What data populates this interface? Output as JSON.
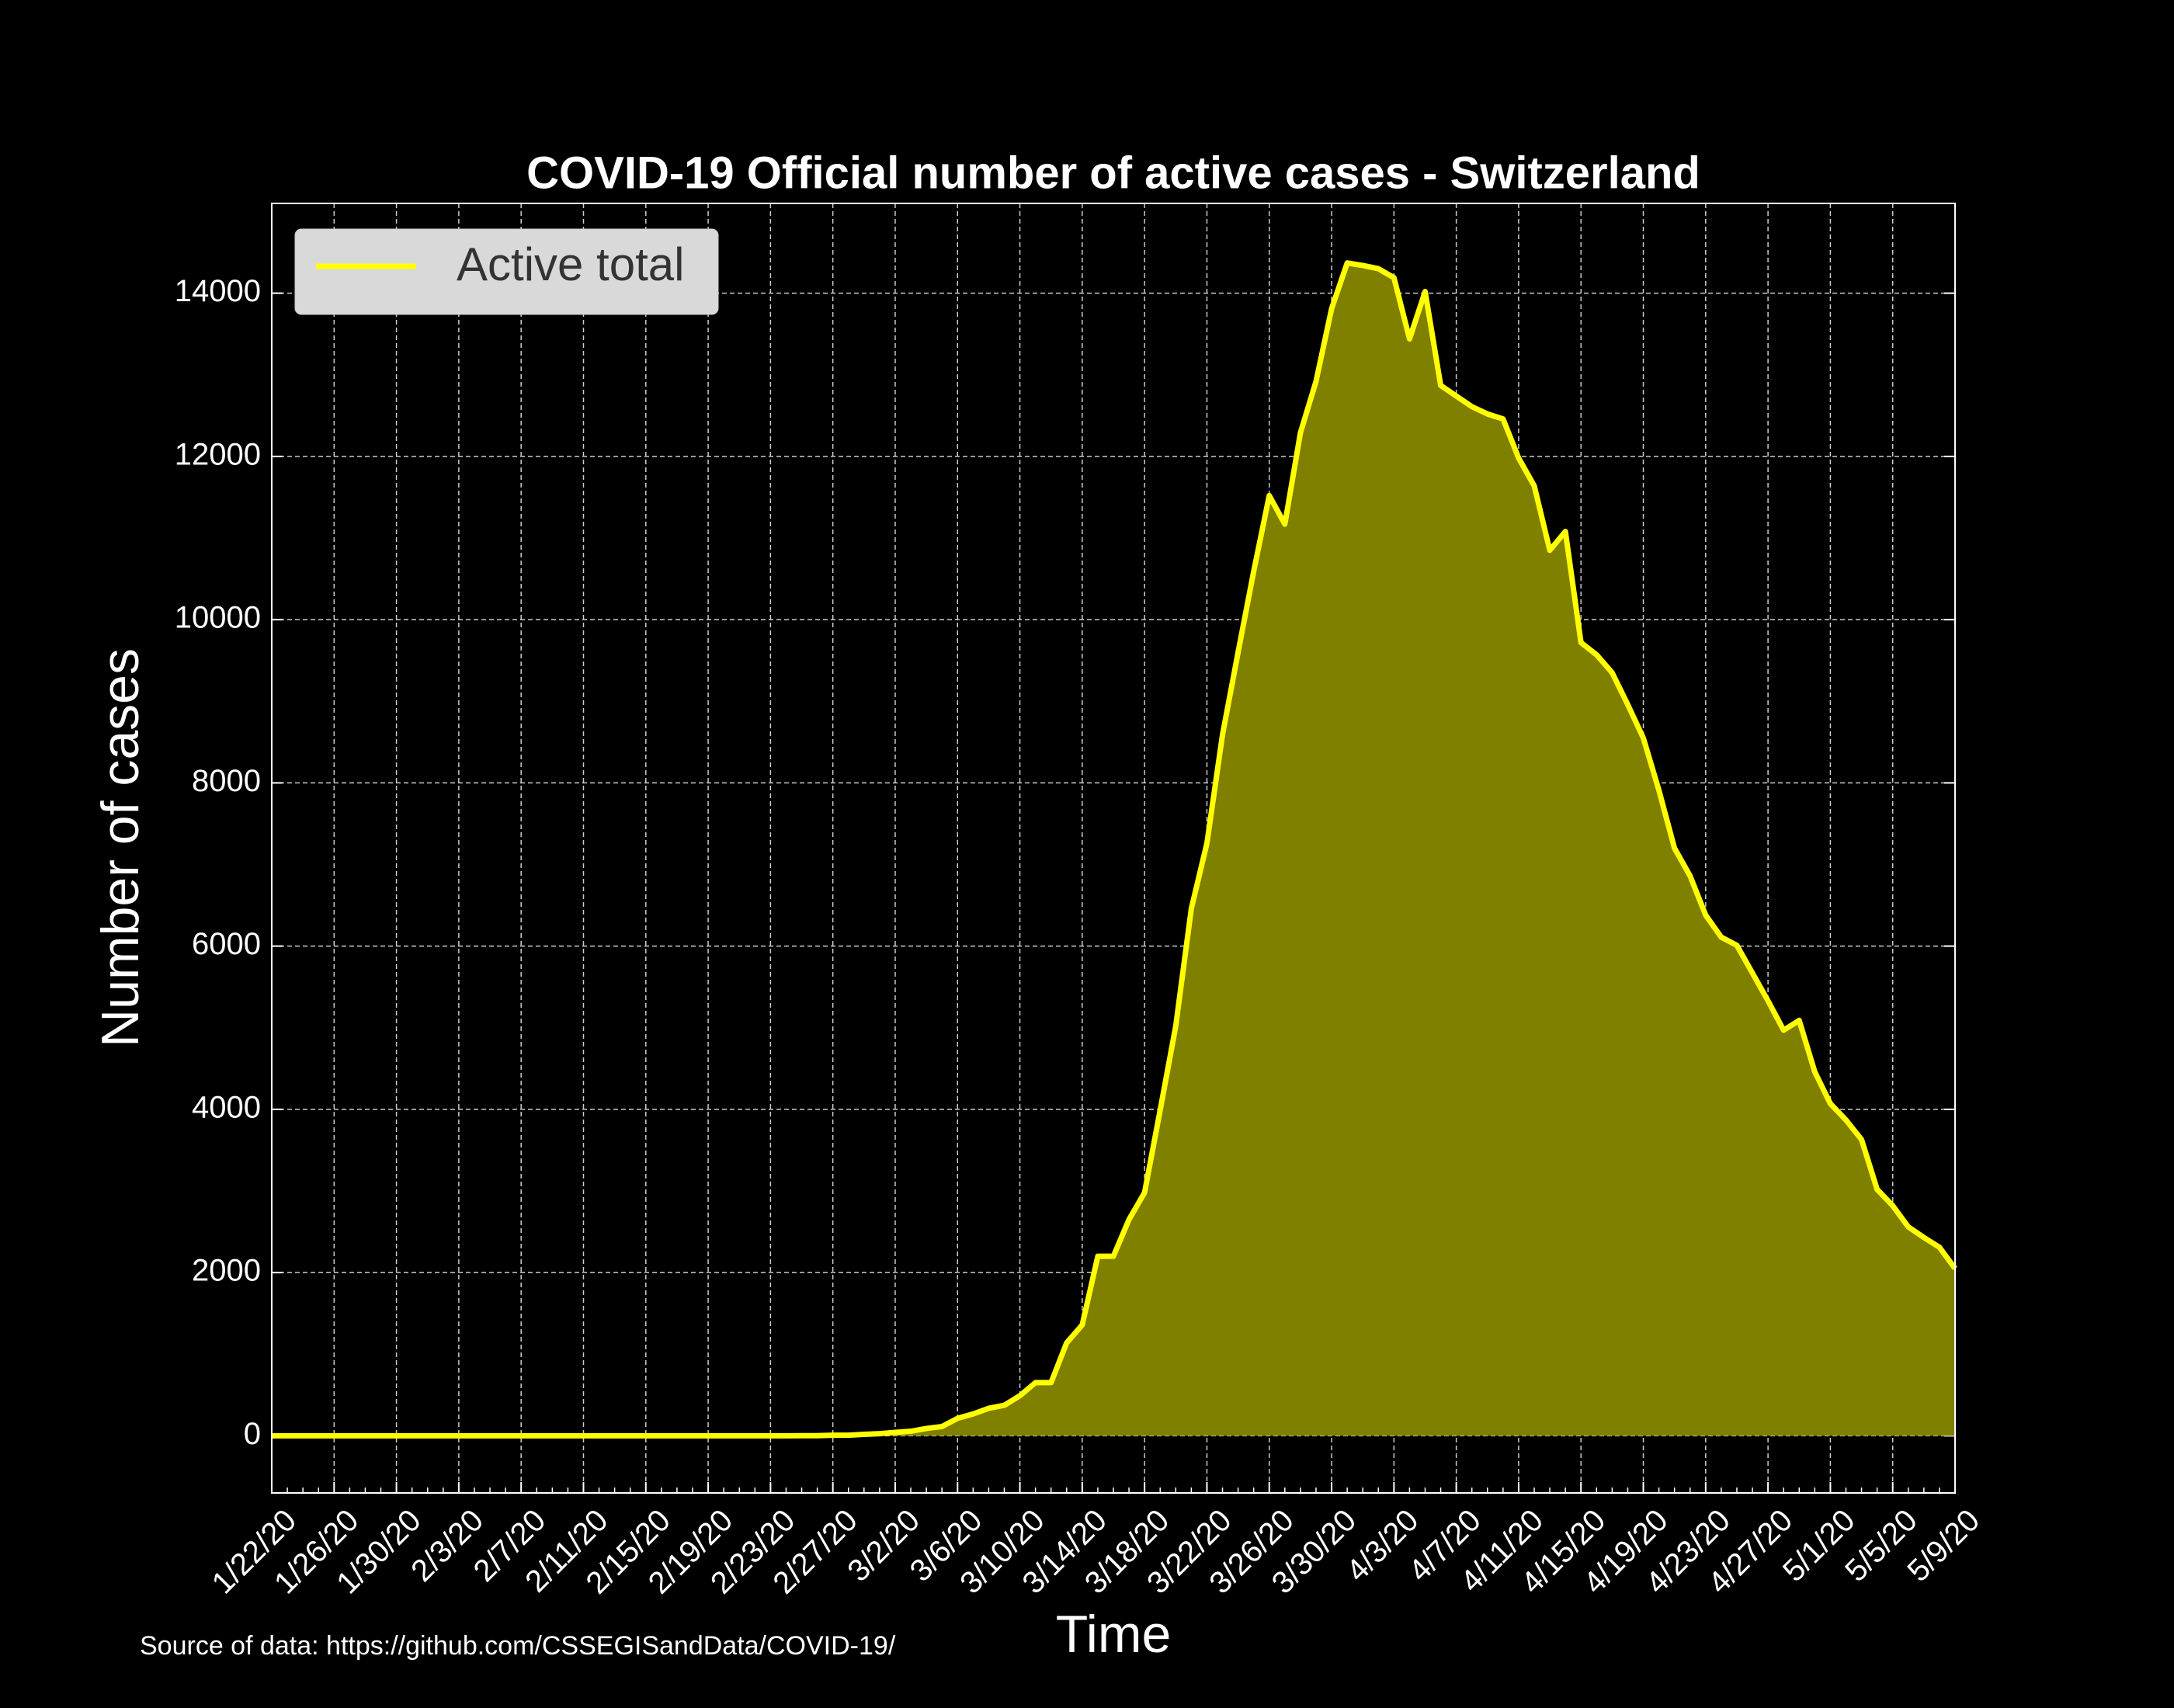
{
  "chart_data": {
    "type": "line",
    "title": "COVID-19 Official number of active cases - Switzerland",
    "x_label": "Time",
    "y_label": "Number of cases",
    "source": "Source of data: https://github.com/CSSEGISandData/COVID-19/",
    "categories": [
      "1/22/20",
      null,
      null,
      null,
      "1/26/20",
      null,
      null,
      null,
      "1/30/20",
      null,
      null,
      null,
      "2/3/20",
      null,
      null,
      null,
      "2/7/20",
      null,
      null,
      null,
      "2/11/20",
      null,
      null,
      null,
      "2/15/20",
      null,
      null,
      null,
      "2/19/20",
      null,
      null,
      null,
      "2/23/20",
      null,
      null,
      null,
      "2/27/20",
      null,
      null,
      null,
      "3/2/20",
      null,
      null,
      null,
      "3/6/20",
      null,
      null,
      null,
      "3/10/20",
      null,
      null,
      null,
      "3/14/20",
      null,
      null,
      null,
      "3/18/20",
      null,
      null,
      null,
      "3/22/20",
      null,
      null,
      null,
      "3/26/20",
      null,
      null,
      null,
      "3/30/20",
      null,
      null,
      null,
      "4/3/20",
      null,
      null,
      null,
      "4/7/20",
      null,
      null,
      null,
      "4/11/20",
      null,
      null,
      null,
      "4/15/20",
      null,
      null,
      null,
      "4/19/20",
      null,
      null,
      null,
      "4/23/20",
      null,
      null,
      null,
      "4/27/20",
      null,
      null,
      null,
      "5/1/20",
      null,
      null,
      null,
      "5/5/20",
      null,
      null,
      null,
      "5/9/20"
    ],
    "series": [
      {
        "name": "Active total",
        "color": "#ffff00",
        "fill_color": "#808000",
        "values": [
          0,
          0,
          0,
          0,
          0,
          0,
          0,
          0,
          0,
          0,
          0,
          0,
          0,
          0,
          0,
          0,
          0,
          0,
          0,
          0,
          0,
          0,
          0,
          0,
          0,
          0,
          0,
          0,
          0,
          0,
          0,
          0,
          0,
          0,
          1,
          1,
          8,
          8,
          18,
          27,
          42,
          56,
          90,
          114,
          214,
          268,
          337,
          374,
          491,
          652,
          652,
          1139,
          1359,
          2200,
          2200,
          2650,
          2980,
          3990,
          5020,
          6460,
          7260,
          8590,
          9600,
          10590,
          11520,
          11170,
          12290,
          12920,
          13810,
          14370,
          14340,
          14300,
          14190,
          13440,
          14020,
          12870,
          12740,
          12610,
          12520,
          12460,
          11980,
          11640,
          10850,
          11080,
          9720,
          9570,
          9350,
          8960,
          8550,
          7910,
          7200,
          6860,
          6380,
          6110,
          6010,
          5670,
          5330,
          4970,
          5090,
          4460,
          4070,
          3870,
          3630,
          3020,
          2820,
          2560,
          2430,
          2310,
          2050
        ]
      }
    ],
    "ylim": [
      -700,
      15100
    ],
    "yticks": [
      0,
      2000,
      4000,
      6000,
      8000,
      10000,
      12000,
      14000
    ],
    "grid": true,
    "legend": "upper left"
  }
}
